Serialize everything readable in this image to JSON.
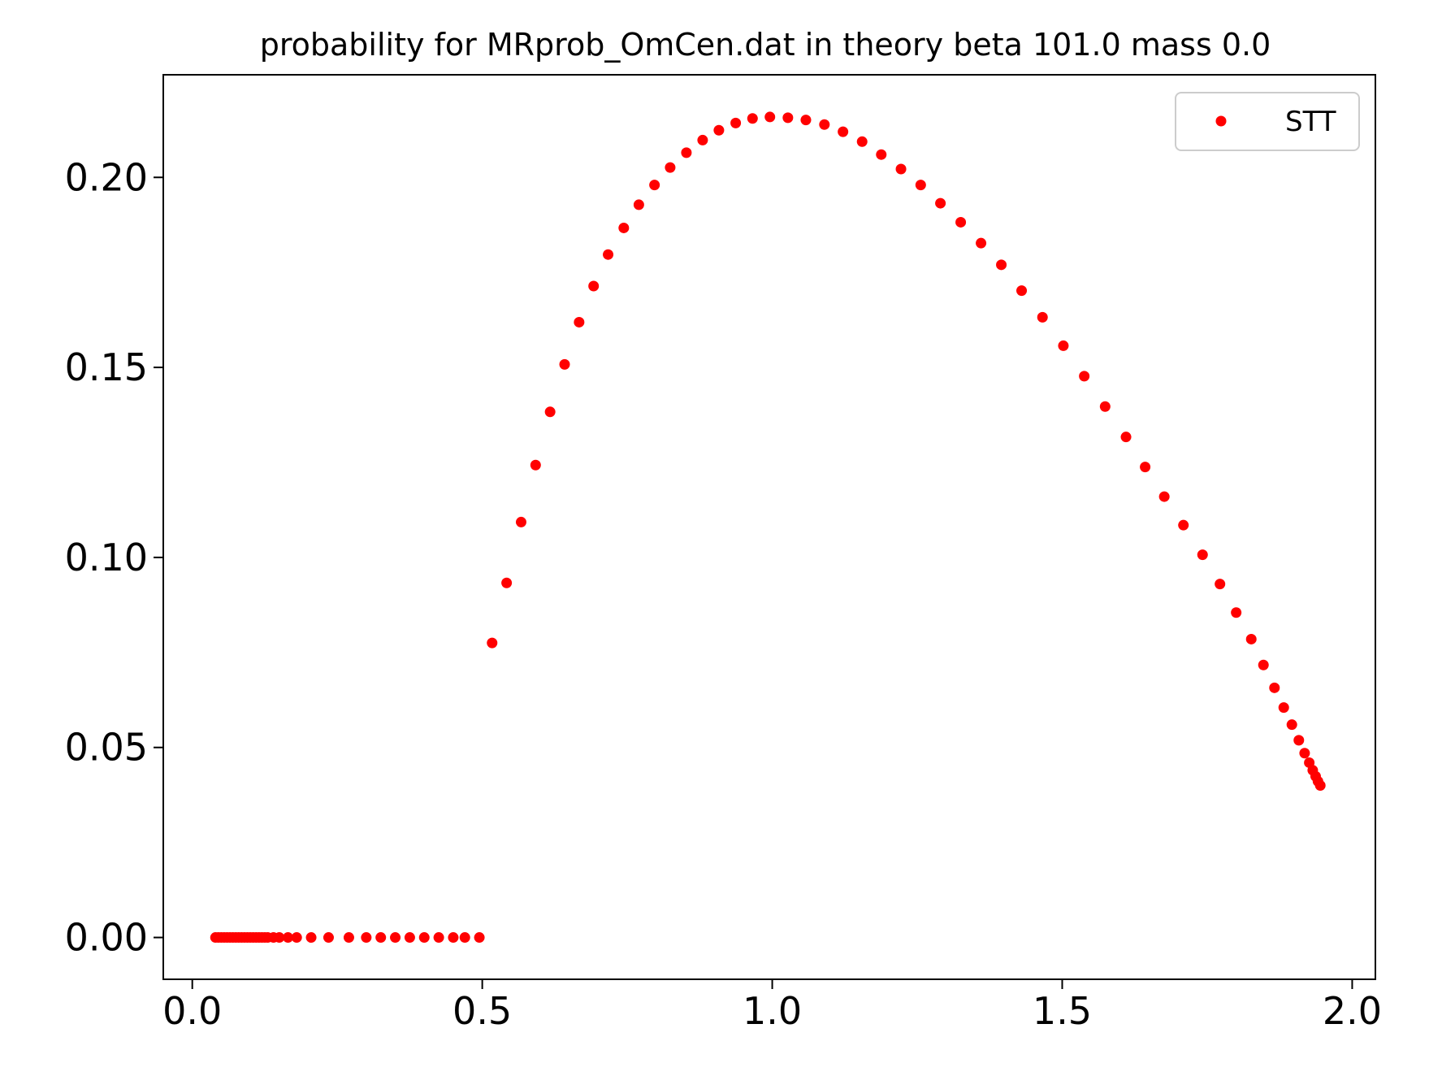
{
  "chart_data": {
    "type": "scatter",
    "title": "probability for MRprob_OmCen.dat in theory beta 101.0 mass 0.0",
    "xlabel": "",
    "ylabel": "",
    "xlim": [
      -0.05,
      2.04
    ],
    "ylim": [
      -0.011,
      0.227
    ],
    "x_ticks": [
      0.0,
      0.5,
      1.0,
      1.5,
      2.0
    ],
    "x_tick_labels": [
      "0.0",
      "0.5",
      "1.0",
      "1.5",
      "2.0"
    ],
    "y_ticks": [
      0.0,
      0.05,
      0.1,
      0.15,
      0.2
    ],
    "y_tick_labels": [
      "0.00",
      "0.05",
      "0.10",
      "0.15",
      "0.20"
    ],
    "grid": false,
    "legend_position": "top-right",
    "series": [
      {
        "name": "STT",
        "color": "#ff0000",
        "marker": "circle",
        "points": [
          [
            0.04,
            0.0
          ],
          [
            0.045,
            0.0
          ],
          [
            0.05,
            0.0
          ],
          [
            0.055,
            0.0
          ],
          [
            0.06,
            0.0
          ],
          [
            0.065,
            0.0
          ],
          [
            0.07,
            0.0
          ],
          [
            0.075,
            0.0
          ],
          [
            0.08,
            0.0
          ],
          [
            0.085,
            0.0
          ],
          [
            0.09,
            0.0
          ],
          [
            0.095,
            0.0
          ],
          [
            0.1,
            0.0
          ],
          [
            0.105,
            0.0
          ],
          [
            0.11,
            0.0
          ],
          [
            0.115,
            0.0
          ],
          [
            0.12,
            0.0
          ],
          [
            0.125,
            0.0
          ],
          [
            0.13,
            0.0
          ],
          [
            0.14,
            0.0
          ],
          [
            0.15,
            0.0
          ],
          [
            0.165,
            0.0
          ],
          [
            0.18,
            0.0
          ],
          [
            0.205,
            0.0
          ],
          [
            0.235,
            0.0
          ],
          [
            0.27,
            0.0
          ],
          [
            0.3,
            0.0
          ],
          [
            0.325,
            0.0
          ],
          [
            0.35,
            0.0
          ],
          [
            0.375,
            0.0
          ],
          [
            0.4,
            0.0
          ],
          [
            0.425,
            0.0
          ],
          [
            0.45,
            0.0
          ],
          [
            0.47,
            0.0
          ],
          [
            0.495,
            0.0
          ],
          [
            0.517,
            0.0775
          ],
          [
            0.542,
            0.0933
          ],
          [
            0.567,
            0.1093
          ],
          [
            0.592,
            0.1243
          ],
          [
            0.617,
            0.1383
          ],
          [
            0.642,
            0.1508
          ],
          [
            0.667,
            0.1619
          ],
          [
            0.692,
            0.1714
          ],
          [
            0.717,
            0.1797
          ],
          [
            0.744,
            0.1867
          ],
          [
            0.77,
            0.1928
          ],
          [
            0.797,
            0.198
          ],
          [
            0.824,
            0.2026
          ],
          [
            0.852,
            0.2065
          ],
          [
            0.88,
            0.2098
          ],
          [
            0.908,
            0.2124
          ],
          [
            0.937,
            0.2143
          ],
          [
            0.966,
            0.2155
          ],
          [
            0.996,
            0.2159
          ],
          [
            1.027,
            0.2157
          ],
          [
            1.058,
            0.2151
          ],
          [
            1.09,
            0.2139
          ],
          [
            1.122,
            0.212
          ],
          [
            1.155,
            0.2094
          ],
          [
            1.188,
            0.206
          ],
          [
            1.222,
            0.2022
          ],
          [
            1.256,
            0.198
          ],
          [
            1.29,
            0.1932
          ],
          [
            1.325,
            0.1882
          ],
          [
            1.36,
            0.1827
          ],
          [
            1.395,
            0.177
          ],
          [
            1.43,
            0.1702
          ],
          [
            1.466,
            0.1632
          ],
          [
            1.502,
            0.1557
          ],
          [
            1.538,
            0.1477
          ],
          [
            1.574,
            0.1397
          ],
          [
            1.61,
            0.1317
          ],
          [
            1.643,
            0.1238
          ],
          [
            1.676,
            0.116
          ],
          [
            1.709,
            0.1085
          ],
          [
            1.742,
            0.1007
          ],
          [
            1.772,
            0.093
          ],
          [
            1.8,
            0.0855
          ],
          [
            1.826,
            0.0785
          ],
          [
            1.847,
            0.0717
          ],
          [
            1.866,
            0.0657
          ],
          [
            1.882,
            0.0605
          ],
          [
            1.896,
            0.056
          ],
          [
            1.908,
            0.0519
          ],
          [
            1.918,
            0.0485
          ],
          [
            1.926,
            0.046
          ],
          [
            1.932,
            0.044
          ],
          [
            1.937,
            0.0424
          ],
          [
            1.941,
            0.0411
          ],
          [
            1.945,
            0.04
          ]
        ]
      }
    ]
  }
}
